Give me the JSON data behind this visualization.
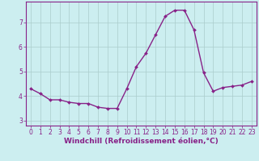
{
  "x": [
    0,
    1,
    2,
    3,
    4,
    5,
    6,
    7,
    8,
    9,
    10,
    11,
    12,
    13,
    14,
    15,
    16,
    17,
    18,
    19,
    20,
    21,
    22,
    23
  ],
  "y": [
    4.3,
    4.1,
    3.85,
    3.85,
    3.75,
    3.7,
    3.7,
    3.55,
    3.5,
    3.5,
    4.3,
    5.2,
    5.75,
    6.5,
    7.25,
    7.5,
    7.5,
    6.7,
    4.95,
    4.2,
    4.35,
    4.4,
    4.45,
    4.6
  ],
  "line_color": "#882288",
  "marker": "D",
  "marker_size": 2,
  "linewidth": 1.0,
  "bg_color": "#cceef0",
  "grid_color": "#aacccc",
  "xlabel": "Windchill (Refroidissement éolien,°C)",
  "xlabel_fontsize": 6.5,
  "xlim": [
    -0.5,
    23.5
  ],
  "ylim": [
    2.8,
    7.85
  ],
  "yticks": [
    3,
    4,
    5,
    6,
    7
  ],
  "xticks": [
    0,
    1,
    2,
    3,
    4,
    5,
    6,
    7,
    8,
    9,
    10,
    11,
    12,
    13,
    14,
    15,
    16,
    17,
    18,
    19,
    20,
    21,
    22,
    23
  ],
  "tick_fontsize": 5.5,
  "tick_color": "#882288",
  "spine_color": "#882288",
  "grid_linewidth": 0.5
}
